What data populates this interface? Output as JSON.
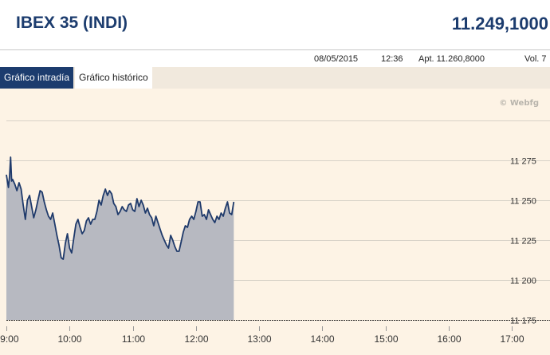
{
  "header": {
    "title": "IBEX 35 (INDI)",
    "price": "11.249,1000"
  },
  "info": {
    "date": "08/05/2015",
    "time": "12:36",
    "apertura": "Apt. 11.260,8000",
    "volumen": "Vol. 7"
  },
  "tabs": [
    {
      "label": "Gráfico intradía",
      "active": true
    },
    {
      "label": "Gráfico histórico",
      "active": false
    }
  ],
  "watermark": "© Webfg",
  "colors": {
    "line": "#1f3a6b",
    "fill": "#b7b9c1",
    "accent": "#1c3c6e",
    "grid": "#d8d2c8"
  },
  "chart_data": {
    "type": "area",
    "title": "",
    "xlabel": "",
    "ylabel": "",
    "x_ticks": [
      "09:00",
      "10:00",
      "11:00",
      "12:00",
      "13:00",
      "14:00",
      "15:00",
      "16:00",
      "17:00"
    ],
    "y_ticks": [
      11175,
      11200,
      11225,
      11250,
      11275
    ],
    "y_tick_labels": [
      "11 175",
      "11 200",
      "11 225",
      "11 250",
      "11 275"
    ],
    "xlim": [
      "09:00",
      "17:00"
    ],
    "ylim": [
      11175,
      11300
    ],
    "grid": true,
    "reference_line": 11175,
    "series": [
      {
        "x": [
          "09:00",
          "09:02",
          "09:03",
          "09:04",
          "09:05",
          "09:06",
          "09:08",
          "09:10",
          "09:12",
          "09:14",
          "09:16",
          "09:18",
          "09:20",
          "09:22",
          "09:24",
          "09:26",
          "09:28",
          "09:30",
          "09:32",
          "09:34",
          "09:36",
          "09:38",
          "09:40",
          "09:42",
          "09:44",
          "09:46",
          "09:48",
          "09:50",
          "09:52",
          "09:54",
          "09:56",
          "09:58",
          "10:00",
          "10:02",
          "10:04",
          "10:06",
          "10:08",
          "10:10",
          "10:12",
          "10:14",
          "10:16",
          "10:18",
          "10:20",
          "10:22",
          "10:24",
          "10:26",
          "10:28",
          "10:30",
          "10:32",
          "10:34",
          "10:36",
          "10:38",
          "10:40",
          "10:42",
          "10:44",
          "10:46",
          "10:48",
          "10:50",
          "10:52",
          "10:54",
          "10:56",
          "10:58",
          "11:00",
          "11:02",
          "11:04",
          "11:06",
          "11:08",
          "11:10",
          "11:12",
          "11:14",
          "11:16",
          "11:18",
          "11:20",
          "11:22",
          "11:24",
          "11:26",
          "11:28",
          "11:30",
          "11:32",
          "11:34",
          "11:36",
          "11:38",
          "11:40",
          "11:42",
          "11:44",
          "11:46",
          "11:48",
          "11:50",
          "11:52",
          "11:54",
          "11:56",
          "11:58",
          "12:00",
          "12:02",
          "12:04",
          "12:06",
          "12:08",
          "12:10",
          "12:12",
          "12:14",
          "12:16",
          "12:18",
          "12:20",
          "12:22",
          "12:24",
          "12:26",
          "12:28",
          "12:30",
          "12:32",
          "12:34",
          "12:36"
        ],
        "values": [
          11266,
          11258,
          11265,
          11277,
          11262,
          11263,
          11260,
          11256,
          11261,
          11257,
          11247,
          11238,
          11250,
          11253,
          11246,
          11239,
          11244,
          11250,
          11256,
          11255,
          11249,
          11244,
          11240,
          11238,
          11242,
          11235,
          11228,
          11222,
          11214,
          11213,
          11223,
          11229,
          11220,
          11217,
          11226,
          11235,
          11238,
          11233,
          11229,
          11231,
          11237,
          11239,
          11235,
          11238,
          11238,
          11243,
          11250,
          11247,
          11253,
          11257,
          11253,
          11256,
          11254,
          11248,
          11246,
          11241,
          11243,
          11246,
          11244,
          11243,
          11247,
          11248,
          11244,
          11243,
          11251,
          11246,
          11250,
          11247,
          11242,
          11245,
          11241,
          11239,
          11234,
          11240,
          11236,
          11232,
          11228,
          11225,
          11222,
          11220,
          11228,
          11225,
          11221,
          11218,
          11218,
          11224,
          11230,
          11234,
          11233,
          11238,
          11240,
          11238,
          11243,
          11249,
          11249,
          11240,
          11241,
          11238,
          11244,
          11241,
          11238,
          11236,
          11240,
          11238,
          11242,
          11240,
          11245,
          11249,
          11242,
          11241,
          11249
        ]
      }
    ]
  }
}
